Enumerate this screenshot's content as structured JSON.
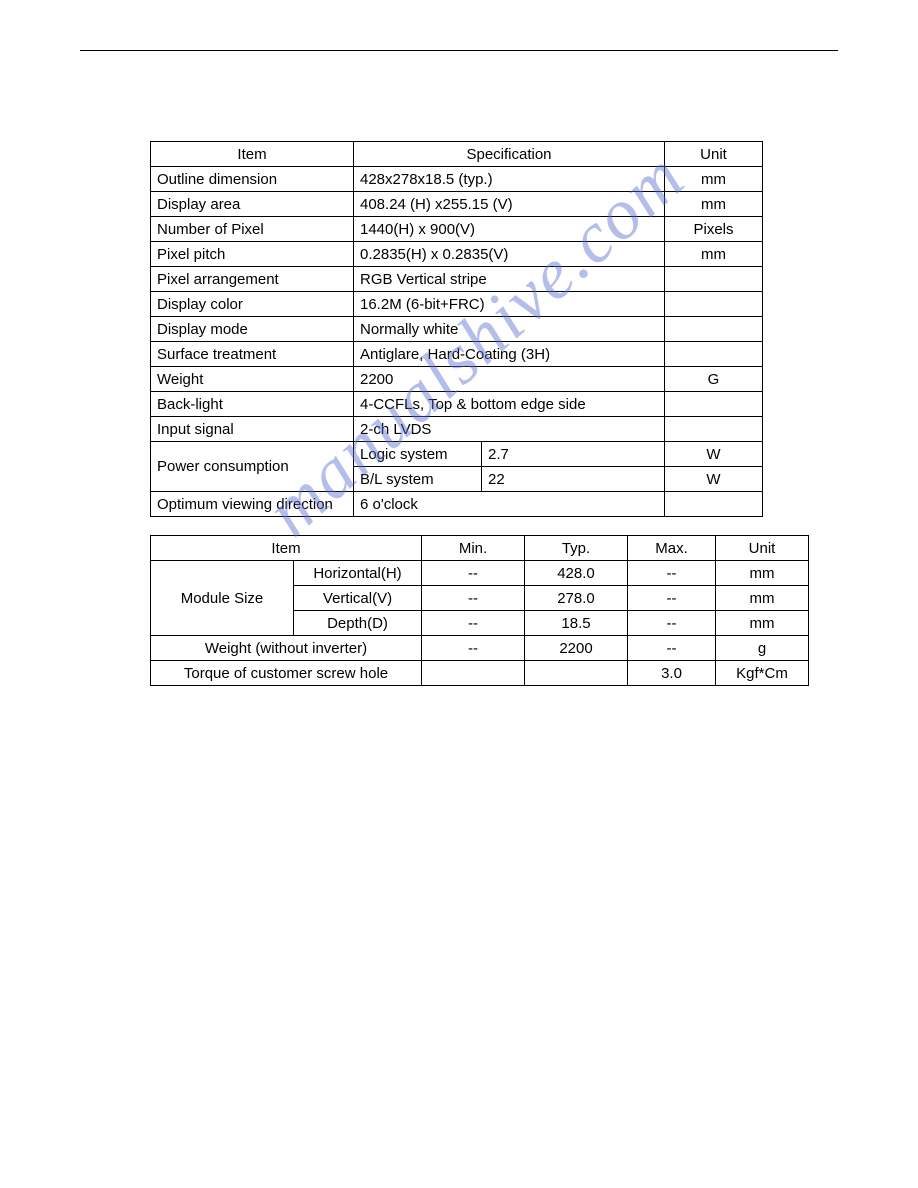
{
  "watermark_text": "manualshive.com",
  "table1": {
    "headers": {
      "item": "Item",
      "spec": "Specification",
      "unit": "Unit"
    },
    "rows": [
      {
        "item": "Outline dimension",
        "spec": "428x278x18.5 (typ.)",
        "unit": "mm"
      },
      {
        "item": "Display area",
        "spec": "408.24 (H) x255.15 (V)",
        "unit": "mm"
      },
      {
        "item": "Number of Pixel",
        "spec": "1440(H) x 900(V)",
        "unit": "Pixels"
      },
      {
        "item": "Pixel pitch",
        "spec": "0.2835(H) x 0.2835(V)",
        "unit": "mm"
      },
      {
        "item": "Pixel arrangement",
        "spec": "RGB Vertical stripe",
        "unit": ""
      },
      {
        "item": "Display color",
        "spec": "16.2M (6-bit+FRC)",
        "unit": ""
      },
      {
        "item": "Display mode",
        "spec": "Normally white",
        "unit": ""
      },
      {
        "item": "Surface treatment",
        "spec": "Antiglare, Hard-Coating (3H)",
        "unit": ""
      },
      {
        "item": "Weight",
        "spec": "2200",
        "unit": "G"
      },
      {
        "item": "Back-light",
        "spec": "4-CCFLs, Top & bottom edge side",
        "unit": ""
      },
      {
        "item": "Input signal",
        "spec": "2-ch LVDS",
        "unit": ""
      }
    ],
    "power_label": "Power consumption",
    "power_rows": [
      {
        "sub": "Logic system",
        "val": "2.7",
        "unit": "W"
      },
      {
        "sub": "B/L system",
        "val": "22",
        "unit": "W"
      }
    ],
    "last_row": {
      "item": "Optimum viewing direction",
      "spec": "6 o'clock",
      "unit": ""
    }
  },
  "table2": {
    "headers": {
      "item": "Item",
      "min": "Min.",
      "typ": "Typ.",
      "max": "Max.",
      "unit": "Unit"
    },
    "module_label": "Module Size",
    "module_rows": [
      {
        "dim": "Horizontal(H)",
        "min": "--",
        "typ": "428.0",
        "max": "--",
        "unit": "mm"
      },
      {
        "dim": "Vertical(V)",
        "min": "--",
        "typ": "278.0",
        "max": "--",
        "unit": "mm"
      },
      {
        "dim": "Depth(D)",
        "min": "--",
        "typ": "18.5",
        "max": "--",
        "unit": "mm"
      }
    ],
    "weight_row": {
      "label": "Weight (without inverter)",
      "min": "--",
      "typ": "2200",
      "max": "--",
      "unit": "g"
    },
    "torque_row": {
      "label": "Torque of customer screw hole",
      "min": "",
      "typ": "",
      "max": "3.0",
      "unit": "Kgf*Cm"
    }
  }
}
